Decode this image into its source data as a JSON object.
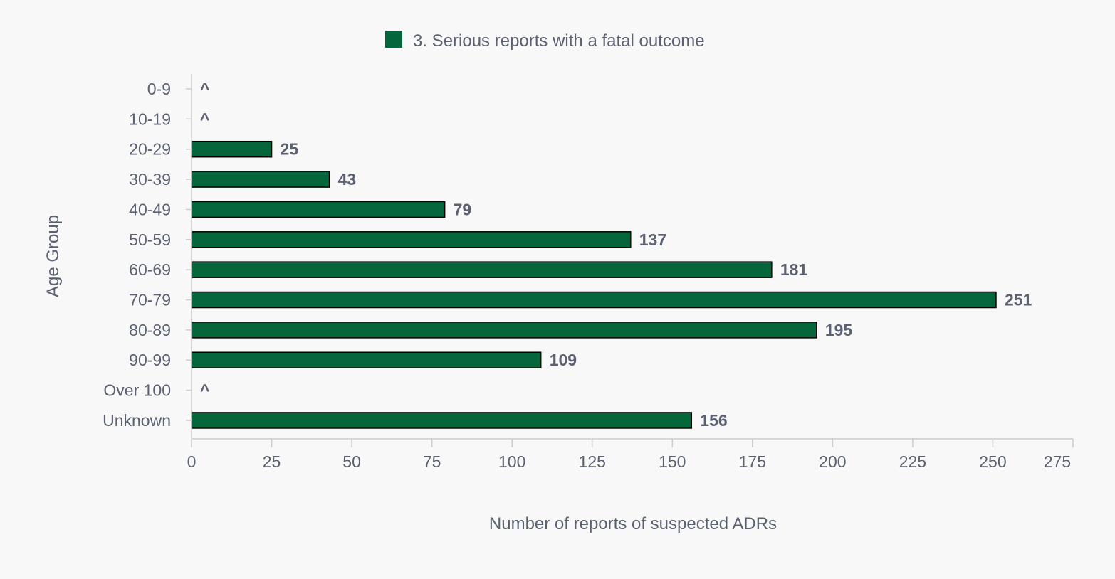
{
  "chart_data": {
    "type": "bar",
    "orientation": "horizontal",
    "categories": [
      "0-9",
      "10-19",
      "20-29",
      "30-39",
      "40-49",
      "50-59",
      "60-69",
      "70-79",
      "80-89",
      "90-99",
      "Over 100",
      "Unknown"
    ],
    "series": [
      {
        "name": "3. Serious reports with a fatal outcome",
        "values": [
          null,
          null,
          25,
          43,
          79,
          137,
          181,
          251,
          195,
          109,
          null,
          156
        ],
        "labels": [
          "^",
          "^",
          "25",
          "43",
          "79",
          "137",
          "181",
          "251",
          "195",
          "109",
          "^",
          "156"
        ]
      }
    ],
    "xlabel": "Number of reports of suspected ADRs",
    "ylabel": "Age Group",
    "xlim": [
      0,
      275
    ],
    "xticks": [
      0,
      25,
      50,
      75,
      100,
      125,
      150,
      175,
      200,
      225,
      250,
      275
    ],
    "legend_position": "top-center",
    "grid": false
  },
  "colors": {
    "bar_fill": "#05663b",
    "bar_stroke": "#000000",
    "text": "#5b6170",
    "axis": "#cccccc"
  }
}
